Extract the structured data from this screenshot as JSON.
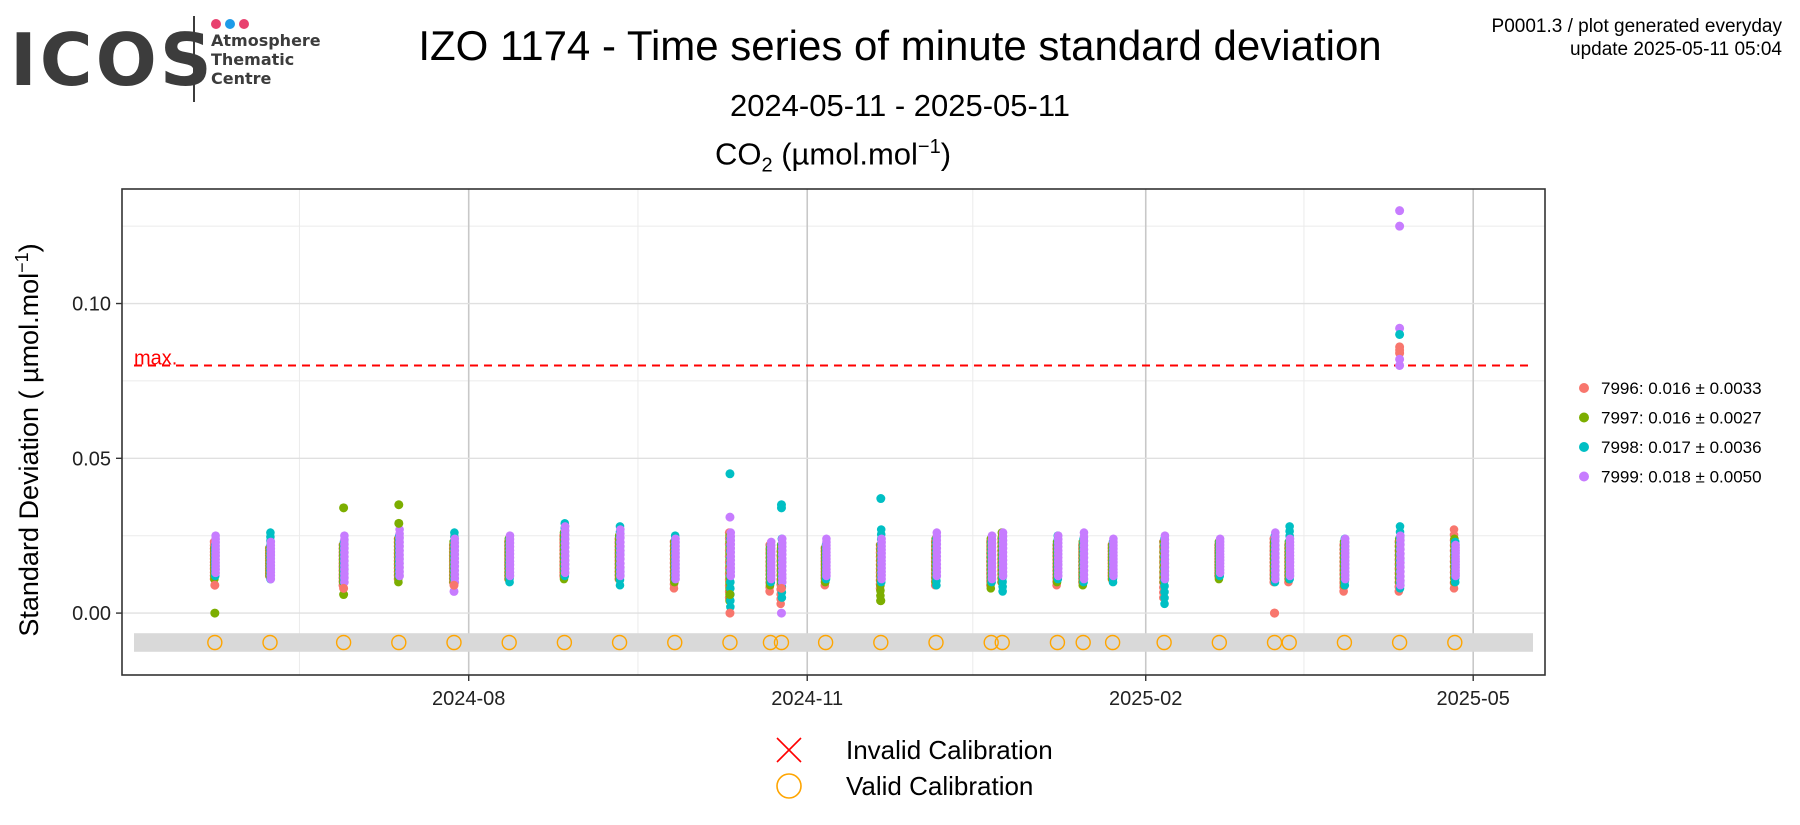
{
  "logo": {
    "brand": "ICOS",
    "line1": "Atmosphere",
    "line2": "Thematic",
    "line3": "Centre",
    "dot_colors": [
      "#e8416f",
      "#1e9be8",
      "#e8416f"
    ]
  },
  "header": {
    "title": "IZO 1174 - Time series of minute standard deviation",
    "date_range": "2024-05-11 - 2025-05-11",
    "species_main": "CO",
    "species_sub": "2",
    "species_unit_a": " (µmol.mol",
    "species_unit_sup": "−1",
    "species_unit_b": ")",
    "ref_line1": "P0001.3 / plot generated everyday",
    "ref_line2": "update  2025-05-11 05:04"
  },
  "chart_data": {
    "type": "scatter",
    "ylabel_main": "Standard Deviation ( µmol.mol",
    "ylabel_sup": "−1",
    "ylabel_end": ")",
    "xlim": [
      "2024-05-11",
      "2025-05-11"
    ],
    "ylim": [
      -0.02,
      0.137
    ],
    "grid": true,
    "x_ticks": [
      {
        "date": "2024-08-01",
        "label": "2024-08"
      },
      {
        "date": "2024-11-01",
        "label": "2024-11"
      },
      {
        "date": "2025-02-01",
        "label": "2025-02"
      },
      {
        "date": "2025-05-01",
        "label": "2025-05"
      }
    ],
    "y_ticks": [
      {
        "value": 0.0,
        "label": "0.00"
      },
      {
        "value": 0.05,
        "label": "0.05"
      },
      {
        "value": 0.1,
        "label": "0.10"
      }
    ],
    "threshold": {
      "value": 0.08,
      "label": "max.",
      "color": "#ff0000"
    },
    "valid_band": {
      "ymin": -0.0125,
      "ymax": -0.0065,
      "color": "#d9d9d9"
    },
    "series": [
      {
        "name": "7996: 0.016 ± 0.0033",
        "color": "#f8766d"
      },
      {
        "name": "7997: 0.016 ± 0.0027",
        "color": "#7cae00"
      },
      {
        "name": "7998: 0.017 ± 0.0036",
        "color": "#00bfc4"
      },
      {
        "name": "7999: 0.018 ± 0.0050",
        "color": "#c77cff"
      }
    ],
    "calibrations": [
      {
        "date": "2024-05-24",
        "ranges": [
          [
            0.011,
            0.023
          ],
          [
            0.011,
            0.021
          ],
          [
            0.012,
            0.022
          ],
          [
            0.013,
            0.025
          ]
        ],
        "extra": [
          [
            0,
            0.009
          ],
          [
            1,
            0.0
          ]
        ]
      },
      {
        "date": "2024-06-08",
        "ranges": [
          [
            0.012,
            0.021
          ],
          [
            0.012,
            0.021
          ],
          [
            0.011,
            0.026
          ],
          [
            0.011,
            0.023
          ]
        ],
        "extra": []
      },
      {
        "date": "2024-06-28",
        "ranges": [
          [
            0.009,
            0.022
          ],
          [
            0.01,
            0.022
          ],
          [
            0.01,
            0.023
          ],
          [
            0.01,
            0.025
          ]
        ],
        "extra": [
          [
            1,
            0.034
          ],
          [
            1,
            0.006
          ],
          [
            0,
            0.008
          ]
        ]
      },
      {
        "date": "2024-07-13",
        "ranges": [
          [
            0.011,
            0.024
          ],
          [
            0.01,
            0.024
          ],
          [
            0.012,
            0.025
          ],
          [
            0.012,
            0.027
          ]
        ],
        "extra": [
          [
            1,
            0.035
          ],
          [
            1,
            0.029
          ]
        ]
      },
      {
        "date": "2024-07-28",
        "ranges": [
          [
            0.01,
            0.022
          ],
          [
            0.01,
            0.023
          ],
          [
            0.011,
            0.026
          ],
          [
            0.01,
            0.024
          ]
        ],
        "extra": [
          [
            3,
            0.007
          ],
          [
            0,
            0.009
          ]
        ]
      },
      {
        "date": "2024-08-12",
        "ranges": [
          [
            0.011,
            0.023
          ],
          [
            0.011,
            0.024
          ],
          [
            0.01,
            0.024
          ],
          [
            0.012,
            0.025
          ]
        ],
        "extra": []
      },
      {
        "date": "2024-08-27",
        "ranges": [
          [
            0.012,
            0.025
          ],
          [
            0.011,
            0.026
          ],
          [
            0.012,
            0.029
          ],
          [
            0.013,
            0.028
          ]
        ],
        "extra": []
      },
      {
        "date": "2024-09-11",
        "ranges": [
          [
            0.011,
            0.024
          ],
          [
            0.011,
            0.025
          ],
          [
            0.009,
            0.028
          ],
          [
            0.012,
            0.027
          ]
        ],
        "extra": []
      },
      {
        "date": "2024-09-26",
        "ranges": [
          [
            0.008,
            0.023
          ],
          [
            0.01,
            0.023
          ],
          [
            0.011,
            0.025
          ],
          [
            0.011,
            0.024
          ]
        ],
        "extra": []
      },
      {
        "date": "2024-10-11",
        "ranges": [
          [
            0.005,
            0.026
          ],
          [
            0.004,
            0.025
          ],
          [
            0.002,
            0.024
          ],
          [
            0.012,
            0.026
          ]
        ],
        "extra": [
          [
            2,
            0.045
          ],
          [
            3,
            0.031
          ],
          [
            0,
            0.0
          ],
          [
            1,
            0.006
          ]
        ]
      },
      {
        "date": "2024-10-22",
        "ranges": [
          [
            0.007,
            0.022
          ],
          [
            0.009,
            0.021
          ],
          [
            0.01,
            0.022
          ],
          [
            0.011,
            0.023
          ]
        ],
        "extra": []
      },
      {
        "date": "2024-10-25",
        "ranges": [
          [
            0.003,
            0.02
          ],
          [
            0.01,
            0.022
          ],
          [
            0.005,
            0.024
          ],
          [
            0.01,
            0.024
          ]
        ],
        "extra": [
          [
            2,
            0.035
          ],
          [
            2,
            0.034
          ],
          [
            0,
            0.008
          ],
          [
            3,
            0.0
          ]
        ]
      },
      {
        "date": "2024-11-06",
        "ranges": [
          [
            0.009,
            0.021
          ],
          [
            0.01,
            0.021
          ],
          [
            0.011,
            0.022
          ],
          [
            0.012,
            0.024
          ]
        ],
        "extra": []
      },
      {
        "date": "2024-11-21",
        "ranges": [
          [
            0.008,
            0.022
          ],
          [
            0.004,
            0.022
          ],
          [
            0.01,
            0.027
          ],
          [
            0.011,
            0.024
          ]
        ],
        "extra": [
          [
            2,
            0.037
          ],
          [
            1,
            0.004
          ]
        ]
      },
      {
        "date": "2024-12-06",
        "ranges": [
          [
            0.009,
            0.023
          ],
          [
            0.01,
            0.024
          ],
          [
            0.009,
            0.024
          ],
          [
            0.012,
            0.026
          ]
        ],
        "extra": []
      },
      {
        "date": "2024-12-21",
        "ranges": [
          [
            0.009,
            0.023
          ],
          [
            0.008,
            0.024
          ],
          [
            0.01,
            0.023
          ],
          [
            0.011,
            0.025
          ]
        ],
        "extra": []
      },
      {
        "date": "2024-12-24",
        "ranges": [
          [
            0.01,
            0.024
          ],
          [
            0.01,
            0.026
          ],
          [
            0.007,
            0.024
          ],
          [
            0.012,
            0.026
          ]
        ],
        "extra": []
      },
      {
        "date": "2025-01-08",
        "ranges": [
          [
            0.009,
            0.022
          ],
          [
            0.01,
            0.023
          ],
          [
            0.011,
            0.025
          ],
          [
            0.012,
            0.025
          ]
        ],
        "extra": []
      },
      {
        "date": "2025-01-15",
        "ranges": [
          [
            0.01,
            0.022
          ],
          [
            0.009,
            0.023
          ],
          [
            0.01,
            0.024
          ],
          [
            0.011,
            0.026
          ]
        ],
        "extra": []
      },
      {
        "date": "2025-01-23",
        "ranges": [
          [
            0.011,
            0.022
          ],
          [
            0.011,
            0.022
          ],
          [
            0.01,
            0.023
          ],
          [
            0.012,
            0.024
          ]
        ],
        "extra": []
      },
      {
        "date": "2025-02-06",
        "ranges": [
          [
            0.005,
            0.023
          ],
          [
            0.01,
            0.023
          ],
          [
            0.003,
            0.024
          ],
          [
            0.011,
            0.025
          ]
        ],
        "extra": []
      },
      {
        "date": "2025-02-21",
        "ranges": [
          [
            0.012,
            0.022
          ],
          [
            0.011,
            0.023
          ],
          [
            0.012,
            0.023
          ],
          [
            0.013,
            0.024
          ]
        ],
        "extra": []
      },
      {
        "date": "2025-03-08",
        "ranges": [
          [
            0.01,
            0.024
          ],
          [
            0.011,
            0.023
          ],
          [
            0.01,
            0.025
          ],
          [
            0.011,
            0.026
          ]
        ],
        "extra": [
          [
            0,
            0.0
          ],
          [
            0,
            0.0
          ]
        ]
      },
      {
        "date": "2025-03-12",
        "ranges": [
          [
            0.01,
            0.022
          ],
          [
            0.011,
            0.023
          ],
          [
            0.011,
            0.028
          ],
          [
            0.012,
            0.024
          ]
        ],
        "extra": []
      },
      {
        "date": "2025-03-27",
        "ranges": [
          [
            0.007,
            0.022
          ],
          [
            0.009,
            0.023
          ],
          [
            0.009,
            0.024
          ],
          [
            0.011,
            0.024
          ]
        ],
        "extra": []
      },
      {
        "date": "2025-04-11",
        "ranges": [
          [
            0.007,
            0.023
          ],
          [
            0.01,
            0.024
          ],
          [
            0.008,
            0.028
          ],
          [
            0.009,
            0.025
          ]
        ],
        "extra": [
          [
            3,
            0.13
          ],
          [
            3,
            0.125
          ],
          [
            3,
            0.092
          ],
          [
            2,
            0.09
          ],
          [
            0,
            0.086
          ],
          [
            0,
            0.085
          ],
          [
            0,
            0.084
          ],
          [
            3,
            0.082
          ],
          [
            3,
            0.08
          ]
        ]
      },
      {
        "date": "2025-04-26",
        "ranges": [
          [
            0.008,
            0.027
          ],
          [
            0.01,
            0.024
          ],
          [
            0.01,
            0.023
          ],
          [
            0.012,
            0.022
          ]
        ],
        "extra": []
      }
    ],
    "valid_markers": [
      "2024-05-24",
      "2024-06-08",
      "2024-06-28",
      "2024-07-13",
      "2024-07-28",
      "2024-08-12",
      "2024-08-27",
      "2024-09-11",
      "2024-09-26",
      "2024-10-11",
      "2024-10-22",
      "2024-10-25",
      "2024-11-06",
      "2024-11-21",
      "2024-12-06",
      "2024-12-21",
      "2024-12-24",
      "2025-01-08",
      "2025-01-15",
      "2025-01-23",
      "2025-02-06",
      "2025-02-21",
      "2025-03-08",
      "2025-03-12",
      "2025-03-27",
      "2025-04-11",
      "2025-04-26"
    ],
    "marker_colors": {
      "valid": "#ffa500",
      "invalid": "#ff0000"
    },
    "bottom_legend": {
      "invalid": "Invalid Calibration",
      "valid": "Valid Calibration"
    }
  }
}
